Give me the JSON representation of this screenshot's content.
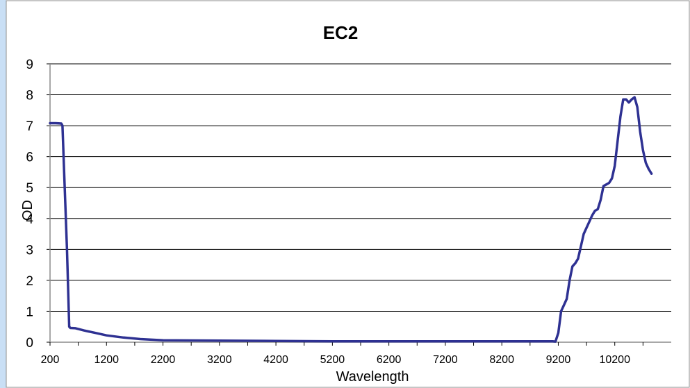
{
  "chart_data": {
    "type": "line",
    "title": "EC2",
    "xlabel": "Wavelength",
    "ylabel": "OD",
    "xlim": [
      200,
      11200
    ],
    "ylim": [
      0,
      9
    ],
    "x_ticks": [
      "200",
      "1200",
      "2200",
      "3200",
      "4200",
      "5200",
      "6200",
      "7200",
      "8200",
      "9200",
      "10200"
    ],
    "y_ticks": [
      "0",
      "1",
      "2",
      "3",
      "4",
      "5",
      "6",
      "7",
      "8",
      "9"
    ],
    "grid": "horizontal",
    "series": [
      {
        "color": "#2e3192",
        "points": [
          [
            200,
            7.08
          ],
          [
            300,
            7.08
          ],
          [
            400,
            7.07
          ],
          [
            420,
            7.0
          ],
          [
            450,
            5.5
          ],
          [
            500,
            3.0
          ],
          [
            540,
            0.5
          ],
          [
            560,
            0.46
          ],
          [
            650,
            0.45
          ],
          [
            800,
            0.38
          ],
          [
            1000,
            0.3
          ],
          [
            1200,
            0.22
          ],
          [
            1500,
            0.15
          ],
          [
            1800,
            0.1
          ],
          [
            2200,
            0.06
          ],
          [
            3200,
            0.05
          ],
          [
            4200,
            0.04
          ],
          [
            5200,
            0.03
          ],
          [
            6200,
            0.03
          ],
          [
            7200,
            0.03
          ],
          [
            8200,
            0.03
          ],
          [
            9100,
            0.03
          ],
          [
            9150,
            0.02
          ],
          [
            9200,
            0.3
          ],
          [
            9250,
            1.0
          ],
          [
            9300,
            1.2
          ],
          [
            9350,
            1.4
          ],
          [
            9400,
            2.0
          ],
          [
            9450,
            2.45
          ],
          [
            9500,
            2.55
          ],
          [
            9550,
            2.7
          ],
          [
            9600,
            3.1
          ],
          [
            9650,
            3.5
          ],
          [
            9700,
            3.7
          ],
          [
            9750,
            3.9
          ],
          [
            9800,
            4.1
          ],
          [
            9850,
            4.25
          ],
          [
            9900,
            4.3
          ],
          [
            9950,
            4.6
          ],
          [
            10000,
            5.05
          ],
          [
            10050,
            5.1
          ],
          [
            10100,
            5.15
          ],
          [
            10150,
            5.3
          ],
          [
            10200,
            5.7
          ],
          [
            10250,
            6.5
          ],
          [
            10300,
            7.3
          ],
          [
            10350,
            7.85
          ],
          [
            10400,
            7.85
          ],
          [
            10450,
            7.75
          ],
          [
            10500,
            7.85
          ],
          [
            10550,
            7.92
          ],
          [
            10600,
            7.6
          ],
          [
            10650,
            6.8
          ],
          [
            10700,
            6.2
          ],
          [
            10750,
            5.8
          ],
          [
            10800,
            5.6
          ],
          [
            10850,
            5.45
          ]
        ]
      }
    ]
  }
}
